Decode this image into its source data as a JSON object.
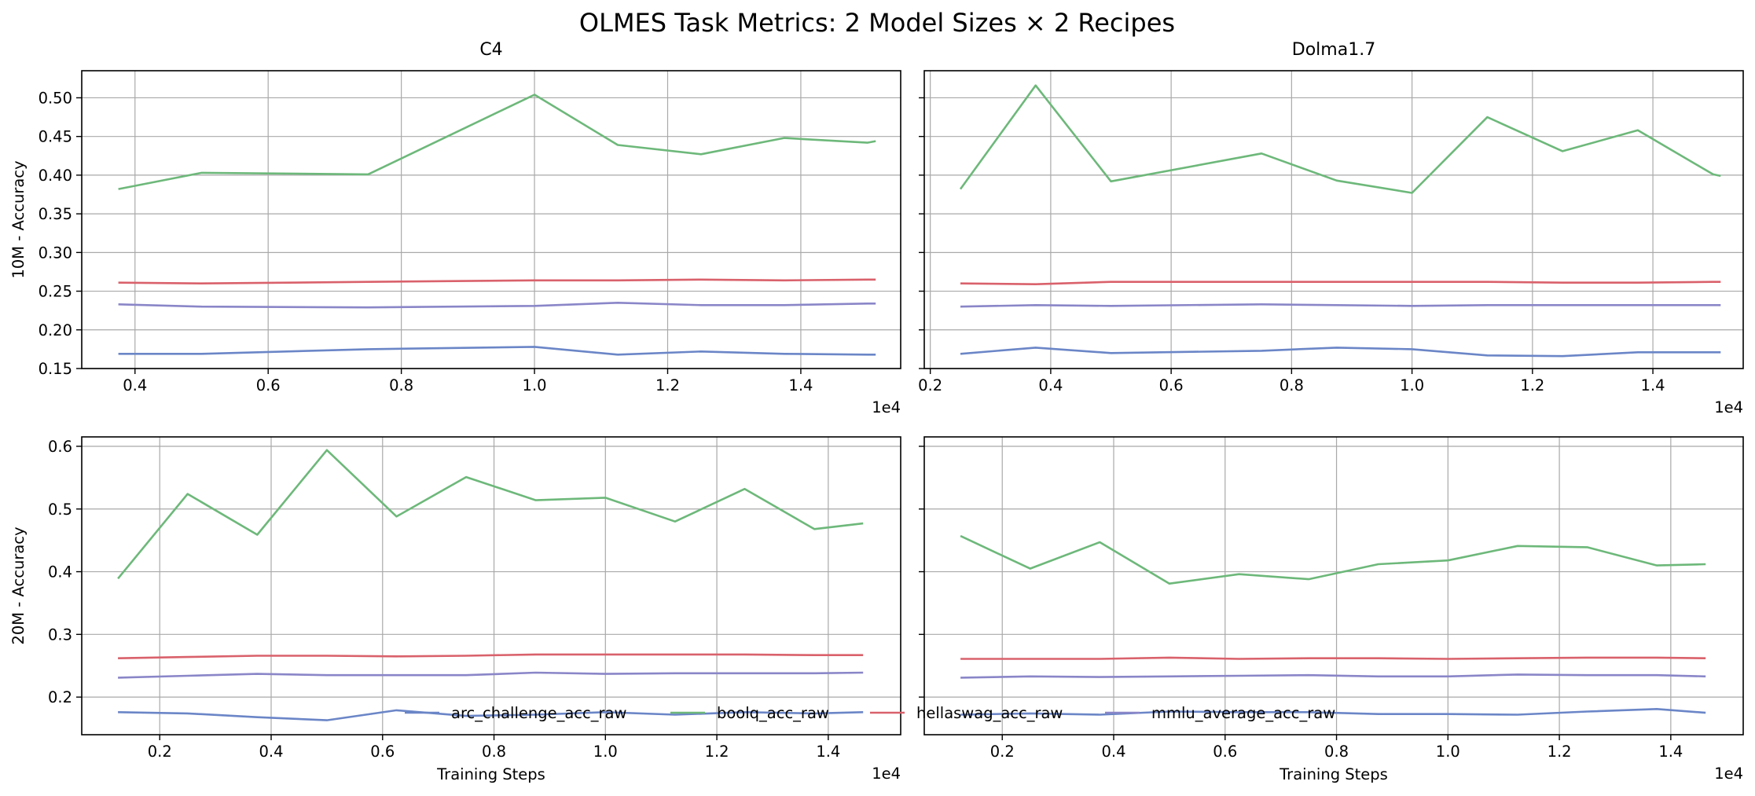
{
  "figure": {
    "title": "OLMES Task Metrics: 2 Model Sizes × 2 Recipes",
    "x_multiplier_label": "1e4"
  },
  "legend": {
    "placement": "lower-center",
    "entries": [
      {
        "name": "arc_challenge_acc_raw",
        "color": "#6b86c7"
      },
      {
        "name": "boolq_acc_raw",
        "color": "#6db87a"
      },
      {
        "name": "hellaswag_acc_raw",
        "color": "#d9616b"
      },
      {
        "name": "mmlu_average_acc_raw",
        "color": "#8a86c8"
      }
    ]
  },
  "chart_data": [
    {
      "type": "line",
      "title": "C4",
      "xlabel": "",
      "ylabel": "10M - Accuracy",
      "xlim": [
        3200,
        15500
      ],
      "ylim": [
        0.15,
        0.535
      ],
      "xticks": [
        4000,
        6000,
        8000,
        10000,
        12000,
        14000
      ],
      "xtick_labels": [
        "0.4",
        "0.6",
        "0.8",
        "1.0",
        "1.2",
        "1.4"
      ],
      "yticks": [
        0.15,
        0.2,
        0.25,
        0.3,
        0.35,
        0.4,
        0.45,
        0.5
      ],
      "ytick_labels": [
        "0.15",
        "0.20",
        "0.25",
        "0.30",
        "0.35",
        "0.40",
        "0.45",
        "0.50"
      ],
      "grid": true,
      "x": [
        3750,
        5000,
        7500,
        10000,
        11250,
        12500,
        13750,
        15000,
        15125
      ],
      "series": [
        {
          "name": "arc_challenge_acc_raw",
          "color": "#6b86c7",
          "values": [
            0.169,
            0.169,
            0.175,
            0.178,
            0.168,
            0.172,
            0.169,
            0.168,
            0.168
          ]
        },
        {
          "name": "boolq_acc_raw",
          "color": "#6db87a",
          "values": [
            0.382,
            0.403,
            0.401,
            0.504,
            0.439,
            0.427,
            0.448,
            0.442,
            0.444
          ]
        },
        {
          "name": "hellaswag_acc_raw",
          "color": "#d9616b",
          "values": [
            0.261,
            0.26,
            0.262,
            0.264,
            0.264,
            0.265,
            0.264,
            0.265,
            0.265
          ]
        },
        {
          "name": "mmlu_average_acc_raw",
          "color": "#8a86c8",
          "values": [
            0.233,
            0.23,
            0.229,
            0.231,
            0.235,
            0.232,
            0.232,
            0.234,
            0.234
          ]
        }
      ]
    },
    {
      "type": "line",
      "title": "Dolma1.7",
      "xlabel": "",
      "ylabel": "",
      "xlim": [
        1900,
        15500
      ],
      "ylim": [
        0.15,
        0.535
      ],
      "xticks": [
        2000,
        4000,
        6000,
        8000,
        10000,
        12000,
        14000
      ],
      "xtick_labels": [
        "0.2",
        "0.4",
        "0.6",
        "0.8",
        "1.0",
        "1.2",
        "1.4"
      ],
      "yticks": [
        0.15,
        0.2,
        0.25,
        0.3,
        0.35,
        0.4,
        0.45,
        0.5
      ],
      "ytick_labels": [],
      "grid": true,
      "x": [
        2500,
        3750,
        5000,
        7500,
        8750,
        10000,
        11250,
        12500,
        13750,
        15000,
        15125
      ],
      "series": [
        {
          "name": "arc_challenge_acc_raw",
          "color": "#6b86c7",
          "values": [
            0.169,
            0.177,
            0.17,
            0.173,
            0.177,
            0.175,
            0.167,
            0.166,
            0.171,
            0.171,
            0.171
          ]
        },
        {
          "name": "boolq_acc_raw",
          "color": "#6db87a",
          "values": [
            0.382,
            0.516,
            0.392,
            0.428,
            0.393,
            0.377,
            0.475,
            0.431,
            0.458,
            0.401,
            0.399
          ]
        },
        {
          "name": "hellaswag_acc_raw",
          "color": "#d9616b",
          "values": [
            0.26,
            0.259,
            0.262,
            0.262,
            0.262,
            0.262,
            0.262,
            0.261,
            0.261,
            0.262,
            0.262
          ]
        },
        {
          "name": "mmlu_average_acc_raw",
          "color": "#8a86c8",
          "values": [
            0.23,
            0.232,
            0.231,
            0.233,
            0.232,
            0.231,
            0.232,
            0.232,
            0.232,
            0.232,
            0.232
          ]
        }
      ]
    },
    {
      "type": "line",
      "title": "",
      "xlabel": "Training Steps",
      "ylabel": "20M - Accuracy",
      "xlim": [
        600,
        15300
      ],
      "ylim": [
        0.14,
        0.615
      ],
      "xticks": [
        2000,
        4000,
        6000,
        8000,
        10000,
        12000,
        14000
      ],
      "xtick_labels": [
        "0.2",
        "0.4",
        "0.6",
        "0.8",
        "1.0",
        "1.2",
        "1.4"
      ],
      "yticks": [
        0.2,
        0.3,
        0.4,
        0.5,
        0.6
      ],
      "ytick_labels": [
        "0.2",
        "0.3",
        "0.4",
        "0.5",
        "0.6"
      ],
      "grid": true,
      "x": [
        1250,
        2500,
        3750,
        5000,
        6250,
        7500,
        8750,
        10000,
        11250,
        12500,
        13750,
        14625
      ],
      "series": [
        {
          "name": "arc_challenge_acc_raw",
          "color": "#6b86c7",
          "values": [
            0.176,
            0.174,
            0.168,
            0.163,
            0.179,
            0.17,
            0.172,
            0.176,
            0.172,
            0.176,
            0.174,
            0.176
          ]
        },
        {
          "name": "boolq_acc_raw",
          "color": "#6db87a",
          "values": [
            0.389,
            0.524,
            0.459,
            0.594,
            0.488,
            0.551,
            0.514,
            0.518,
            0.48,
            0.532,
            0.468,
            0.477
          ]
        },
        {
          "name": "hellaswag_acc_raw",
          "color": "#d9616b",
          "values": [
            0.262,
            0.264,
            0.266,
            0.266,
            0.265,
            0.266,
            0.268,
            0.268,
            0.268,
            0.268,
            0.267,
            0.267
          ]
        },
        {
          "name": "mmlu_average_acc_raw",
          "color": "#8a86c8",
          "values": [
            0.231,
            0.234,
            0.237,
            0.235,
            0.235,
            0.235,
            0.239,
            0.237,
            0.238,
            0.238,
            0.238,
            0.239
          ]
        }
      ]
    },
    {
      "type": "line",
      "title": "",
      "xlabel": "Training Steps",
      "ylabel": "",
      "xlim": [
        600,
        15300
      ],
      "ylim": [
        0.14,
        0.615
      ],
      "xticks": [
        2000,
        4000,
        6000,
        8000,
        10000,
        12000,
        14000
      ],
      "xtick_labels": [
        "0.2",
        "0.4",
        "0.6",
        "0.8",
        "1.0",
        "1.2",
        "1.4"
      ],
      "yticks": [
        0.2,
        0.3,
        0.4,
        0.5,
        0.6
      ],
      "ytick_labels": [],
      "grid": true,
      "x": [
        1250,
        2500,
        3750,
        5000,
        6250,
        7500,
        8750,
        10000,
        11250,
        12500,
        13750,
        14625
      ],
      "series": [
        {
          "name": "arc_challenge_acc_raw",
          "color": "#6b86c7",
          "values": [
            0.172,
            0.174,
            0.172,
            0.177,
            0.176,
            0.176,
            0.173,
            0.173,
            0.172,
            0.177,
            0.181,
            0.175
          ]
        },
        {
          "name": "boolq_acc_raw",
          "color": "#6db87a",
          "values": [
            0.457,
            0.405,
            0.447,
            0.381,
            0.396,
            0.388,
            0.412,
            0.418,
            0.441,
            0.439,
            0.41,
            0.412
          ]
        },
        {
          "name": "hellaswag_acc_raw",
          "color": "#d9616b",
          "values": [
            0.261,
            0.261,
            0.261,
            0.263,
            0.261,
            0.262,
            0.262,
            0.261,
            0.262,
            0.263,
            0.263,
            0.262
          ]
        },
        {
          "name": "mmlu_average_acc_raw",
          "color": "#8a86c8",
          "values": [
            0.231,
            0.233,
            0.232,
            0.233,
            0.234,
            0.235,
            0.233,
            0.233,
            0.236,
            0.235,
            0.235,
            0.233
          ]
        }
      ]
    }
  ]
}
